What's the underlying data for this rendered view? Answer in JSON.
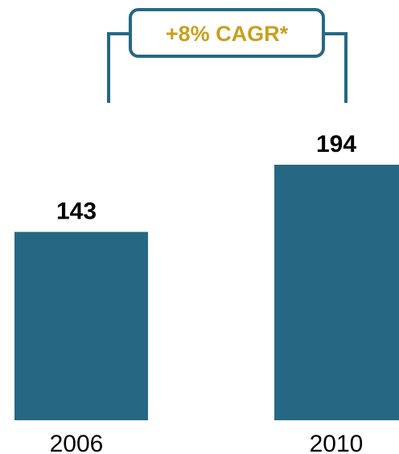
{
  "chart_data": {
    "type": "bar",
    "categories": [
      "2006",
      "2010"
    ],
    "values": [
      143,
      194
    ],
    "title": "",
    "xlabel": "",
    "ylabel": "",
    "ylim": [
      0,
      194
    ],
    "grid": false,
    "annotation": "+8% CAGR*"
  },
  "colors": {
    "bar": "#266883",
    "annotation_text": "#c8a020",
    "annotation_border": "#266883"
  }
}
